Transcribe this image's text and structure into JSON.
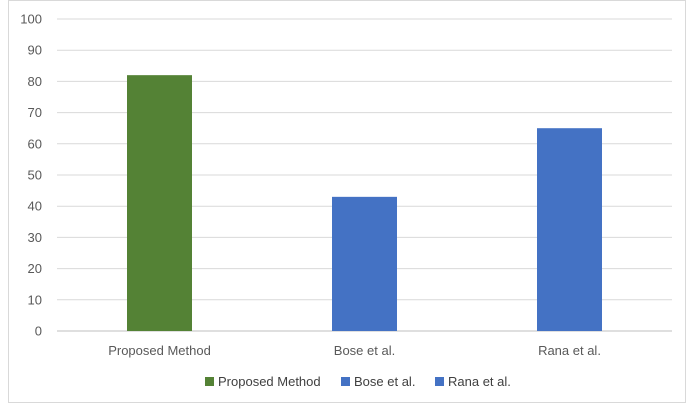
{
  "chart_data": {
    "type": "bar",
    "title": "",
    "xlabel": "",
    "ylabel": "",
    "categories": [
      "Proposed Method",
      "Bose et al.",
      "Rana et al."
    ],
    "values": [
      82,
      43,
      65
    ],
    "colors": [
      "#548235",
      "#4472C4",
      "#4472C4"
    ],
    "ylim": [
      0,
      100
    ],
    "yticks": [
      0,
      10,
      20,
      30,
      40,
      50,
      60,
      70,
      80,
      90,
      100
    ],
    "grid": true,
    "legend": {
      "position": "bottom",
      "entries": [
        {
          "label": "Proposed Method",
          "color": "#548235"
        },
        {
          "label": "Bose et al.",
          "color": "#4472C4"
        },
        {
          "label": "Rana et al.",
          "color": "#4472C4"
        }
      ]
    }
  }
}
